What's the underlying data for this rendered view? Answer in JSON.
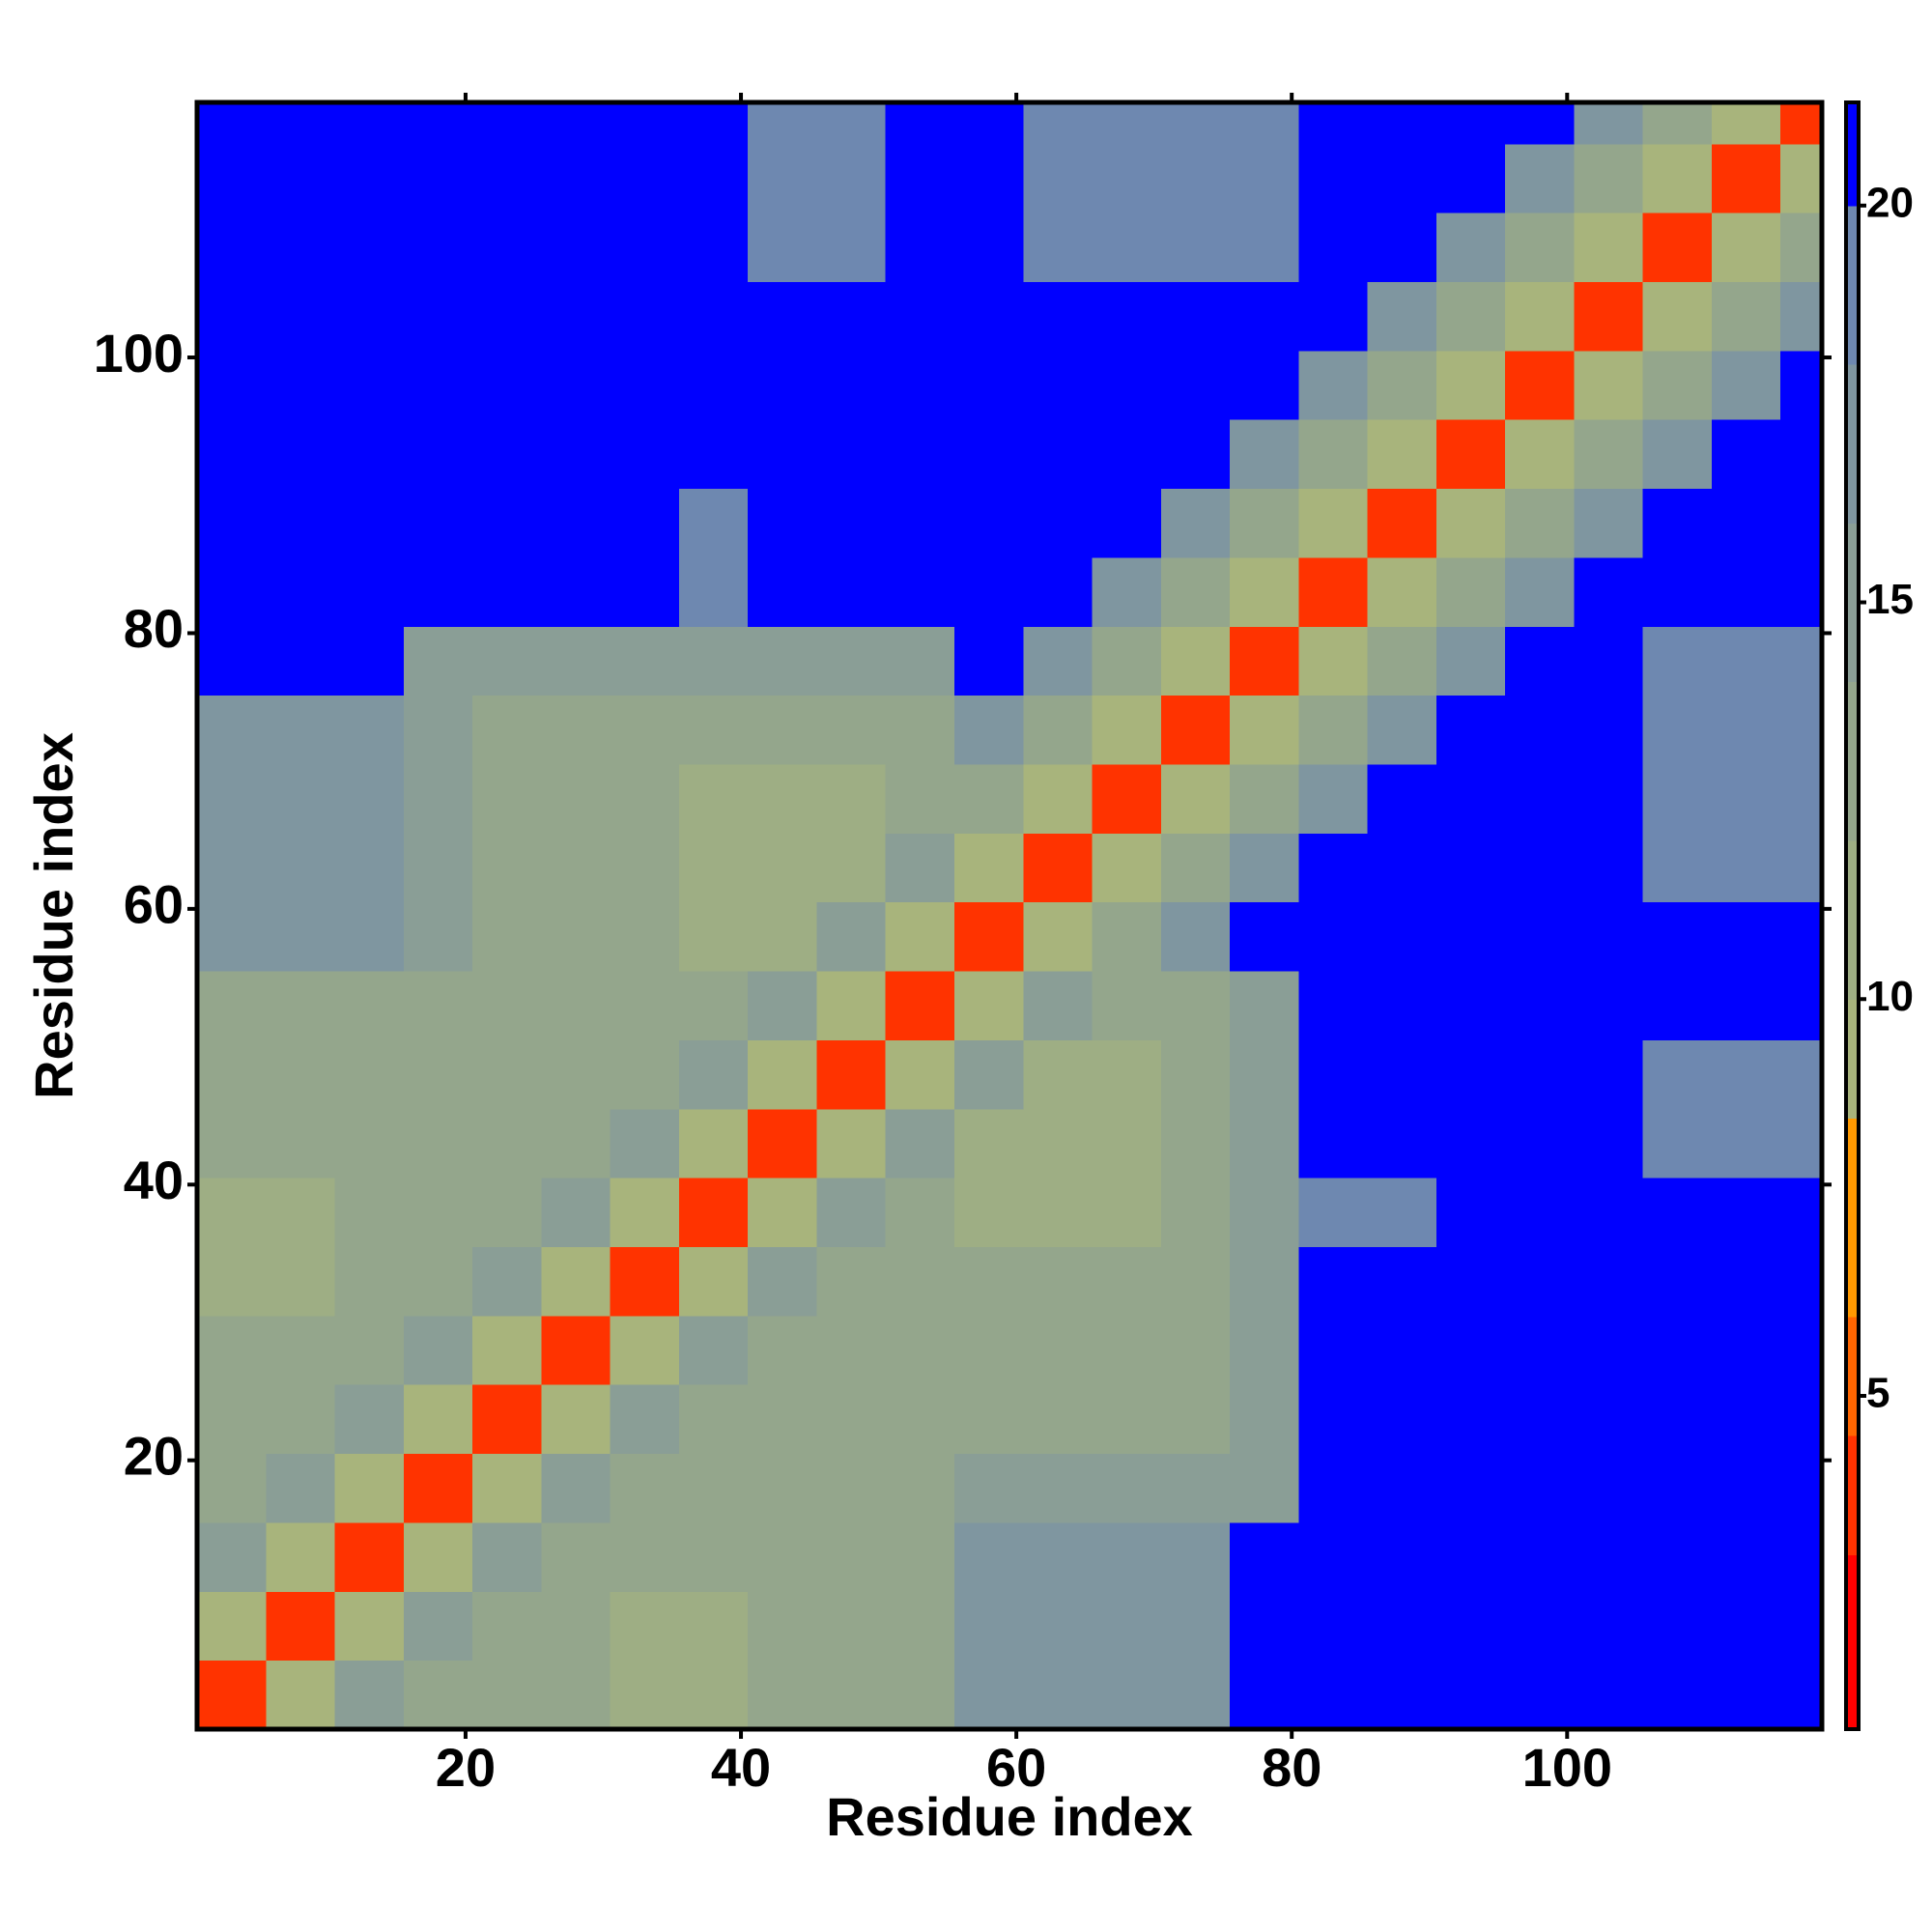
{
  "chart_data": {
    "type": "heatmap",
    "x_label": "Residue index",
    "y_label": "Residue index",
    "xlim": [
      0.5,
      118.5
    ],
    "ylim": [
      0.5,
      118.5
    ],
    "xticks": [
      20,
      40,
      60,
      80,
      100
    ],
    "yticks": [
      20,
      40,
      60,
      80,
      100
    ],
    "xbins": [
      0.5,
      5.5,
      10.5,
      15.5,
      20.5,
      25.5,
      30.5,
      35.5,
      40.5,
      45.5,
      50.5,
      55.5,
      60.5,
      65.5,
      70.5,
      75.5,
      80.5,
      85.5,
      90.5,
      95.5,
      100.5,
      105.5,
      110.5,
      115.5,
      118.5
    ],
    "ybins": [
      0.5,
      5.5,
      10.5,
      15.5,
      20.5,
      25.5,
      30.5,
      35.5,
      40.5,
      45.5,
      50.5,
      55.5,
      60.5,
      65.5,
      70.5,
      75.5,
      80.5,
      85.5,
      90.5,
      95.5,
      100.5,
      105.5,
      110.5,
      115.5,
      118.5
    ],
    "z": [
      [
        4,
        9,
        14,
        12,
        12,
        12,
        10,
        10,
        12,
        13,
        13,
        17,
        17,
        17,
        17,
        21,
        21,
        21,
        21,
        21,
        21,
        21,
        21,
        21
      ],
      [
        9,
        4,
        9,
        14,
        12,
        12,
        10,
        10,
        12,
        13,
        13,
        17,
        17,
        17,
        17,
        21,
        21,
        21,
        21,
        21,
        21,
        21,
        21,
        21
      ],
      [
        14,
        9,
        4,
        9,
        14,
        12,
        12,
        12,
        12,
        13,
        13,
        17,
        17,
        17,
        17,
        21,
        21,
        21,
        21,
        21,
        21,
        21,
        21,
        21
      ],
      [
        12,
        14,
        9,
        4,
        9,
        14,
        12,
        12,
        12,
        13,
        13,
        15,
        15,
        15,
        15,
        14,
        21,
        21,
        21,
        21,
        21,
        21,
        21,
        21
      ],
      [
        12,
        12,
        14,
        9,
        4,
        9,
        14,
        12,
        12,
        12,
        12,
        12,
        12,
        12,
        12,
        14,
        21,
        21,
        21,
        21,
        21,
        21,
        21,
        21
      ],
      [
        12,
        12,
        12,
        14,
        9,
        4,
        9,
        14,
        12,
        12,
        12,
        12,
        12,
        12,
        12,
        14,
        21,
        21,
        21,
        21,
        21,
        21,
        21,
        21
      ],
      [
        10,
        10,
        12,
        12,
        14,
        9,
        4,
        9,
        14,
        12,
        12,
        12,
        12,
        12,
        12,
        14,
        21,
        21,
        21,
        21,
        21,
        21,
        21,
        21
      ],
      [
        10,
        10,
        12,
        12,
        12,
        14,
        9,
        4,
        9,
        14,
        12,
        10,
        10,
        10,
        12,
        14,
        18,
        18,
        21,
        21,
        21,
        21,
        21,
        21
      ],
      [
        12,
        12,
        12,
        12,
        12,
        12,
        14,
        9,
        4,
        9,
        14,
        10,
        10,
        10,
        12,
        14,
        21,
        21,
        21,
        21,
        21,
        19,
        19,
        19
      ],
      [
        13,
        13,
        13,
        13,
        12,
        12,
        12,
        14,
        9,
        4,
        9,
        14,
        10,
        10,
        12,
        14,
        21,
        21,
        21,
        21,
        21,
        19,
        19,
        19
      ],
      [
        13,
        13,
        13,
        13,
        12,
        12,
        12,
        12,
        14,
        9,
        4,
        9,
        14,
        12,
        12,
        14,
        21,
        21,
        21,
        21,
        21,
        21,
        21,
        21
      ],
      [
        17,
        17,
        17,
        15,
        12,
        12,
        12,
        10,
        10,
        14,
        9,
        4,
        9,
        12,
        16,
        21,
        21,
        21,
        21,
        21,
        21,
        21,
        21,
        21
      ],
      [
        17,
        17,
        17,
        15,
        12,
        12,
        12,
        10,
        10,
        10,
        14,
        9,
        4,
        9,
        12,
        16,
        21,
        21,
        21,
        21,
        21,
        19,
        19,
        19
      ],
      [
        17,
        17,
        17,
        15,
        12,
        12,
        12,
        10,
        10,
        10,
        12,
        12,
        9,
        4,
        9,
        12,
        16,
        21,
        21,
        21,
        21,
        19,
        19,
        19
      ],
      [
        17,
        17,
        17,
        15,
        12,
        12,
        12,
        12,
        12,
        12,
        12,
        16,
        12,
        9,
        4,
        9,
        12,
        16,
        21,
        21,
        21,
        19,
        19,
        19
      ],
      [
        21,
        21,
        21,
        14,
        14,
        14,
        14,
        14,
        14,
        14,
        14,
        21,
        16,
        12,
        9,
        4,
        9,
        12,
        16,
        21,
        21,
        19,
        19,
        19
      ],
      [
        21,
        21,
        21,
        21,
        21,
        21,
        21,
        18,
        21,
        21,
        21,
        21,
        21,
        16,
        12,
        9,
        4,
        9,
        12,
        16,
        21,
        21,
        21,
        21
      ],
      [
        21,
        21,
        21,
        21,
        21,
        21,
        21,
        18,
        21,
        21,
        21,
        21,
        21,
        21,
        16,
        12,
        9,
        4,
        9,
        12,
        16,
        21,
        21,
        21
      ],
      [
        21,
        21,
        21,
        21,
        21,
        21,
        21,
        21,
        21,
        21,
        21,
        21,
        21,
        21,
        21,
        16,
        12,
        9,
        4,
        9,
        12,
        16,
        21,
        21
      ],
      [
        21,
        21,
        21,
        21,
        21,
        21,
        21,
        21,
        21,
        21,
        21,
        21,
        21,
        21,
        21,
        21,
        16,
        12,
        9,
        4,
        9,
        12,
        16,
        21
      ],
      [
        21,
        21,
        21,
        21,
        21,
        21,
        21,
        21,
        21,
        21,
        21,
        21,
        21,
        21,
        21,
        21,
        21,
        16,
        12,
        9,
        4,
        9,
        12,
        16
      ],
      [
        21,
        21,
        21,
        21,
        21,
        21,
        21,
        21,
        19,
        19,
        21,
        21,
        19,
        19,
        19,
        19,
        21,
        21,
        16,
        12,
        9,
        4,
        9,
        12
      ],
      [
        21,
        21,
        21,
        21,
        21,
        21,
        21,
        21,
        19,
        19,
        21,
        21,
        19,
        19,
        19,
        19,
        21,
        21,
        21,
        16,
        12,
        9,
        4,
        9
      ],
      [
        21,
        21,
        21,
        21,
        21,
        21,
        21,
        21,
        19,
        19,
        21,
        21,
        19,
        19,
        19,
        19,
        21,
        21,
        21,
        21,
        16,
        12,
        9,
        4
      ]
    ],
    "zlim": [
      0.8,
      21.3
    ],
    "zticks": [
      5,
      10,
      15,
      20
    ],
    "color_bounds": [
      0.8,
      3,
      4.5,
      6,
      8.5,
      10,
      12,
      14,
      16,
      18,
      20,
      21.3
    ],
    "color_values": [
      "#ff0000",
      "#ff3300",
      "#ff6600",
      "#ff9900",
      "#a8b47c",
      "#9eae84",
      "#94a68c",
      "#8a9e96",
      "#7f96a0",
      "#6e88b0",
      "#0000ff"
    ]
  }
}
